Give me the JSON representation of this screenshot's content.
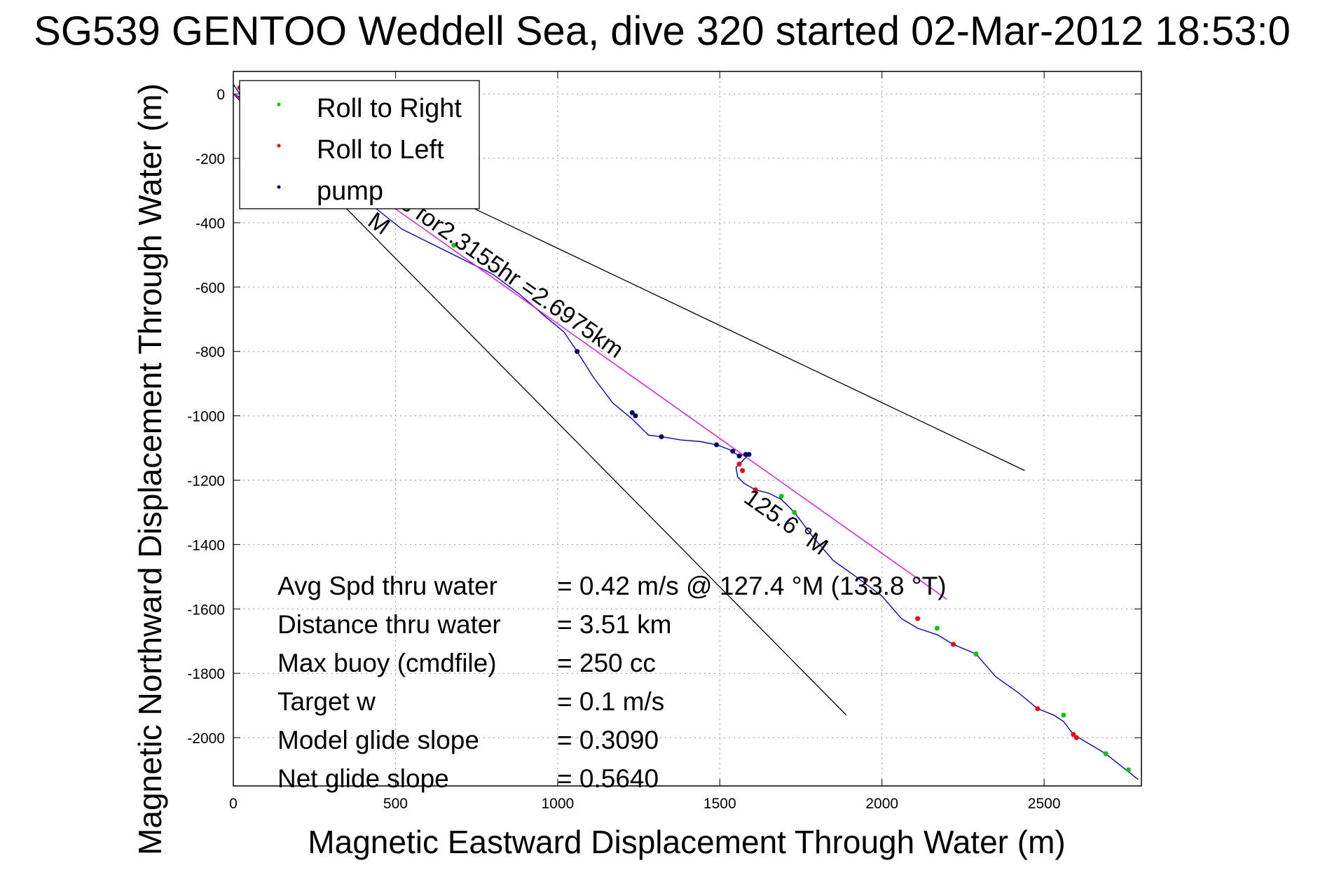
{
  "chart_data": {
    "type": "line",
    "title": "SG539 GENTOO Weddell Sea, dive 320 started 02-Mar-2012 18:53:0",
    "xlabel": "Magnetic Eastward Displacement Through Water (m)",
    "ylabel": "Magnetic Northward Displacement Through Water (m)",
    "xlim": [
      0,
      2800
    ],
    "ylim": [
      -2150,
      70
    ],
    "xticks": [
      0,
      500,
      1000,
      1500,
      2000,
      2500
    ],
    "yticks": [
      0,
      -200,
      -400,
      -600,
      -800,
      -1000,
      -1200,
      -1400,
      -1600,
      -1800,
      -2000
    ],
    "grid": true,
    "legend": {
      "placement": "top-left",
      "entries": [
        {
          "label": "Roll to Right",
          "color": "#00cc00"
        },
        {
          "label": "Roll to Left",
          "color": "#ff0000"
        },
        {
          "label": "pump",
          "color": "#000066"
        }
      ]
    },
    "series": [
      {
        "kind": "track",
        "color": "#0000ff",
        "x": [
          0,
          20,
          40,
          120,
          220,
          320,
          420,
          520,
          620,
          720,
          800,
          880,
          960,
          1020,
          1060,
          1110,
          1170,
          1230,
          1280,
          1320,
          1380,
          1440,
          1490,
          1530,
          1560,
          1575,
          1590,
          1570,
          1550,
          1555,
          1575,
          1610,
          1650,
          1690,
          1730,
          1790,
          1850,
          1920,
          2000,
          2060,
          2110,
          2170,
          2220,
          2290,
          2350,
          2420,
          2480,
          2530,
          2560,
          2590,
          2640,
          2690,
          2740,
          2790
        ],
        "y": [
          30,
          0,
          -30,
          -90,
          -170,
          -250,
          -340,
          -420,
          -470,
          -520,
          -560,
          -620,
          -690,
          -740,
          -800,
          -880,
          -960,
          -1010,
          -1060,
          -1065,
          -1075,
          -1080,
          -1090,
          -1105,
          -1125,
          -1120,
          -1120,
          -1140,
          -1160,
          -1190,
          -1210,
          -1230,
          -1240,
          -1260,
          -1300,
          -1380,
          -1450,
          -1500,
          -1560,
          -1630,
          -1660,
          -1680,
          -1710,
          -1740,
          -1810,
          -1860,
          -1910,
          -1930,
          -1950,
          -1990,
          -2020,
          -2050,
          -2090,
          -2130
        ]
      },
      {
        "kind": "heading-line",
        "color": "#ff00ff",
        "x": [
          0,
          2200
        ],
        "y": [
          0,
          -1570
        ]
      }
    ],
    "guide_lines": [
      {
        "color": "#000000",
        "x": [
          0,
          2440
        ],
        "y": [
          0,
          -1170
        ]
      },
      {
        "color": "#000000",
        "x": [
          0,
          1890
        ],
        "y": [
          0,
          -1930
        ]
      }
    ],
    "annotations": [
      {
        "text": "M",
        "x": 410,
        "y": -405,
        "rotate": 35
      },
      {
        "text": "s for2.3155hr =2.6975km",
        "x": 510,
        "y": -350,
        "rotate": 35
      },
      {
        "text": "125.6 °M",
        "x": 1570,
        "y": -1265,
        "rotate": 35
      }
    ],
    "markers": {
      "roll_right": {
        "x": [
          170,
          680,
          1610,
          1690,
          1730,
          2170,
          2290,
          2560,
          2690,
          2760
        ],
        "y": [
          -140,
          -470,
          -1230,
          -1250,
          -1300,
          -1660,
          -1740,
          -1930,
          -2050,
          -2100
        ]
      },
      "roll_left": {
        "x": [
          20,
          30,
          1560,
          1570,
          1610,
          1950,
          2110,
          2220,
          2480,
          2590,
          2600
        ],
        "y": [
          20,
          10,
          -1150,
          -1170,
          -1230,
          -1510,
          -1630,
          -1710,
          -1910,
          -1990,
          -2000
        ]
      },
      "pump": {
        "x": [
          1060,
          1230,
          1240,
          1320,
          1490,
          1540,
          1560,
          1580,
          1590
        ],
        "y": [
          -800,
          -990,
          -1000,
          -1065,
          -1090,
          -1110,
          -1125,
          -1120,
          -1120
        ]
      }
    },
    "stats": [
      {
        "label": "Avg Spd thru water",
        "value": "=  0.42 m/s @ 127.4 °M (133.8 °T)"
      },
      {
        "label": "Distance thru water",
        "value": "=  3.51 km"
      },
      {
        "label": "Max buoy (cmdfile)",
        "value": "= 250 cc"
      },
      {
        "label": "Target w",
        "value": "= 0.1 m/s"
      },
      {
        "label": "Model glide slope",
        "value": "= 0.3090"
      },
      {
        "label": "Net glide slope",
        "value": "= 0.5640"
      }
    ]
  }
}
